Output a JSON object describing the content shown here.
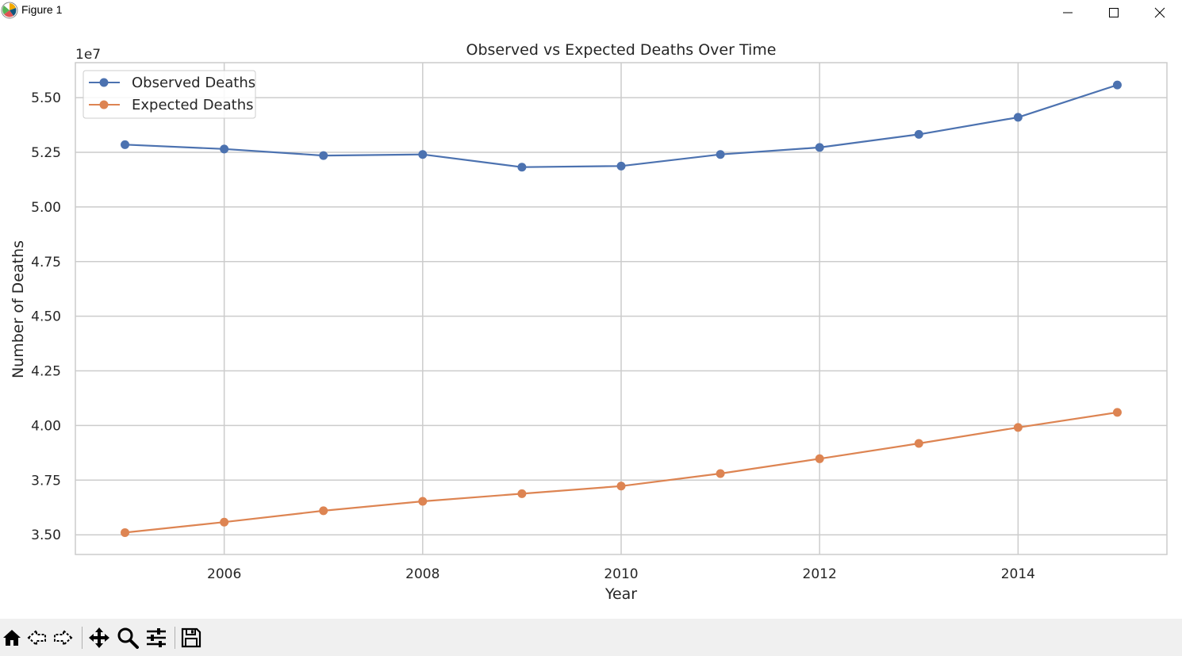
{
  "window": {
    "title": "Figure 1",
    "icon": "matplotlib-logo-icon",
    "controls": [
      "minimize-icon",
      "maximize-icon",
      "close-icon"
    ]
  },
  "toolbar": {
    "tools": [
      "home-icon",
      "back-arrow-icon",
      "forward-arrow-icon",
      "pan-move-icon",
      "zoom-magnifier-icon",
      "configure-subplots-icon",
      "save-disk-icon"
    ]
  },
  "chart_data": {
    "type": "line",
    "title": "Observed vs Expected Deaths Over Time",
    "xlabel": "Year",
    "ylabel": "Number of Deaths",
    "y_offset_label": "1e7",
    "x": [
      2005,
      2006,
      2007,
      2008,
      2009,
      2010,
      2011,
      2012,
      2013,
      2014,
      2015
    ],
    "series": [
      {
        "name": "Observed Deaths",
        "color": "#4c72b0",
        "values": [
          52850000,
          52650000,
          52350000,
          52400000,
          51820000,
          51870000,
          52400000,
          52720000,
          53320000,
          54100000,
          55580000
        ]
      },
      {
        "name": "Expected Deaths",
        "color": "#dd8452",
        "values": [
          35100000,
          35580000,
          36100000,
          36530000,
          36880000,
          37230000,
          37800000,
          38480000,
          39180000,
          39910000,
          40600000
        ]
      }
    ],
    "xlim": [
      2004.5,
      2015.5
    ],
    "ylim": [
      34100000,
      56600000
    ],
    "xticks": [
      2006,
      2008,
      2010,
      2012,
      2014
    ],
    "xtick_labels": [
      "2006",
      "2008",
      "2010",
      "2012",
      "2014"
    ],
    "yticks": [
      35000000,
      37500000,
      40000000,
      42500000,
      45000000,
      47500000,
      50000000,
      52500000,
      55000000
    ],
    "ytick_labels": [
      "3.50",
      "3.75",
      "4.00",
      "4.25",
      "4.50",
      "4.75",
      "5.00",
      "5.25",
      "5.50"
    ],
    "grid": true,
    "legend_position": "upper-left",
    "colors": {
      "grid": "#cccccc",
      "spine": "#cccccc",
      "text": "#262626"
    }
  }
}
